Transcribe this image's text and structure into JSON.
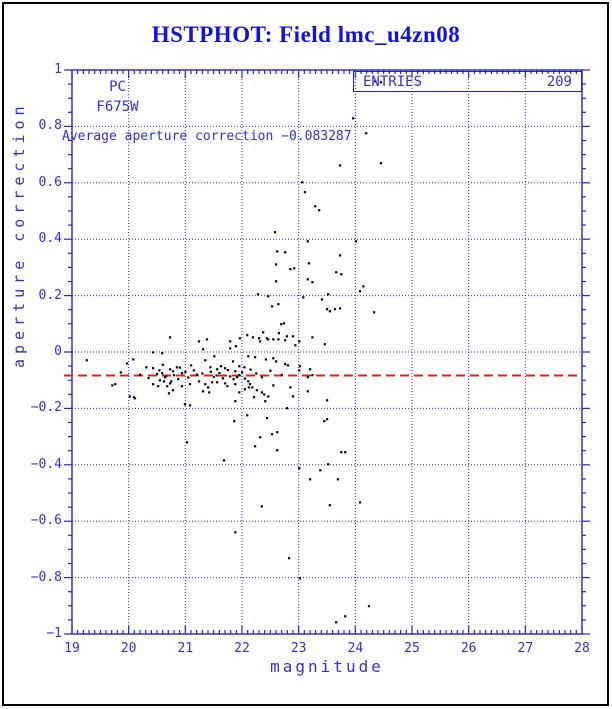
{
  "header": {
    "title": "HSTPHOT: Field lmc_u4zn08"
  },
  "colors": {
    "title_blue": "#1212d8",
    "axis_blue": "#2424c6",
    "text_blue": "#3232cc",
    "grid_blue": "#2a2ac4",
    "reference_red": "#e81c1c",
    "point_black": "#000000",
    "frame_black": "#000000",
    "background": "#ffffff"
  },
  "chart_data": {
    "type": "scatter",
    "title": "HSTPHOT: Field lmc_u4zn08",
    "xlabel": "magnitude",
    "ylabel": "aperture correction",
    "xlim": [
      19,
      28
    ],
    "ylim": [
      -1,
      1
    ],
    "grid": "dotted blue at every major tick",
    "x_tick_values": [
      19,
      20,
      21,
      22,
      23,
      24,
      25,
      26,
      27,
      28
    ],
    "x_tick_labels": [
      "19",
      "20",
      "21",
      "22",
      "23",
      "24",
      "25",
      "26",
      "27",
      "28"
    ],
    "x_minor_step": 0.1,
    "y_tick_values": [
      1,
      0.8,
      0.6,
      0.4,
      0.2,
      0,
      -0.2,
      -0.4,
      -0.6,
      -0.8,
      -1
    ],
    "y_tick_labels": [
      "1",
      "0.8",
      "0.6",
      "0.4",
      "0.2",
      "0",
      "−0.2",
      "−0.4",
      "−0.6",
      "−0.8",
      "−1"
    ],
    "y_minor_step": 0.05,
    "annotations": {
      "detector": "PC",
      "filter": "F675W",
      "average_text": "Average aperture correction −0.083287",
      "average_value": -0.083287
    },
    "stats_box": {
      "label": "ENTRIES",
      "value": "209"
    },
    "reference_line": {
      "y": -0.083287,
      "style": "dashed",
      "color": "#e81c1c"
    },
    "points": [
      [
        23.06,
        0.602
      ],
      [
        23.11,
        0.567
      ],
      [
        23.29,
        0.517
      ],
      [
        23.36,
        0.503
      ],
      [
        22.58,
        0.425
      ],
      [
        23.16,
        0.393
      ],
      [
        24.35,
        0.96
      ],
      [
        24.45,
        0.957
      ],
      [
        23.96,
        0.829
      ],
      [
        24.19,
        0.776
      ],
      [
        23.73,
        0.662
      ],
      [
        24.45,
        0.67
      ],
      [
        24.01,
        0.393
      ],
      [
        22.62,
        0.357
      ],
      [
        22.76,
        0.354
      ],
      [
        22.6,
        0.311
      ],
      [
        22.85,
        0.294
      ],
      [
        22.92,
        0.297
      ],
      [
        23.18,
        0.315
      ],
      [
        22.6,
        0.251
      ],
      [
        23.16,
        0.258
      ],
      [
        23.24,
        0.248
      ],
      [
        22.28,
        0.205
      ],
      [
        22.46,
        0.198
      ],
      [
        23.08,
        0.194
      ],
      [
        23.41,
        0.187
      ],
      [
        22.53,
        0.162
      ],
      [
        22.64,
        0.17
      ],
      [
        23.5,
        0.152
      ],
      [
        22.69,
        0.099
      ],
      [
        22.74,
        0.102
      ],
      [
        23.73,
        0.343
      ],
      [
        23.66,
        0.283
      ],
      [
        23.75,
        0.276
      ],
      [
        24.14,
        0.233
      ],
      [
        24.08,
        0.216
      ],
      [
        23.52,
        0.205
      ],
      [
        23.64,
        0.152
      ],
      [
        23.73,
        0.155
      ],
      [
        23.55,
        0.145
      ],
      [
        24.33,
        0.141
      ],
      [
        19.26,
        -0.029
      ],
      [
        19.86,
        -0.072
      ],
      [
        19.71,
        -0.118
      ],
      [
        19.76,
        -0.114
      ],
      [
        20.73,
        0.052
      ],
      [
        20.43,
        -0.001
      ],
      [
        20.59,
        -0.004
      ],
      [
        20.08,
        -0.026
      ],
      [
        19.97,
        -0.04
      ],
      [
        20.31,
        -0.054
      ],
      [
        20.43,
        -0.057
      ],
      [
        20.54,
        -0.065
      ],
      [
        20.59,
        -0.075
      ],
      [
        20.64,
        -0.089
      ],
      [
        20.73,
        -0.061
      ],
      [
        20.78,
        -0.068
      ],
      [
        20.85,
        -0.054
      ],
      [
        20.94,
        -0.075
      ],
      [
        20.75,
        -0.104
      ],
      [
        20.68,
        -0.121
      ],
      [
        20.78,
        -0.135
      ],
      [
        20.71,
        -0.146
      ],
      [
        20.09,
        -0.16
      ],
      [
        20.02,
        -0.157
      ],
      [
        21.1,
        -0.047
      ],
      [
        21.24,
        0.038
      ],
      [
        21.38,
        0.045
      ],
      [
        21.31,
        0.01
      ],
      [
        21.51,
        -0.015
      ],
      [
        21.35,
        -0.029
      ],
      [
        21.44,
        -0.054
      ],
      [
        21.56,
        -0.061
      ],
      [
        21.63,
        -0.05
      ],
      [
        21.7,
        -0.057
      ],
      [
        21.79,
        0.038
      ],
      [
        21.79,
        0.013
      ],
      [
        21.89,
        0.021
      ],
      [
        21.96,
        0.049
      ],
      [
        21.95,
        -0.05
      ],
      [
        21.88,
        -0.068
      ],
      [
        22.04,
        -0.054
      ],
      [
        21.79,
        -0.086
      ],
      [
        21.91,
        -0.089
      ],
      [
        21.66,
        -0.093
      ],
      [
        21.56,
        -0.107
      ],
      [
        21.4,
        -0.125
      ],
      [
        21.31,
        -0.139
      ],
      [
        22.11,
        -0.015
      ],
      [
        22.11,
        -0.104
      ],
      [
        22.19,
        0.052
      ],
      [
        22.3,
        0.049
      ],
      [
        22.32,
        0.038
      ],
      [
        22.46,
        0.045
      ],
      [
        22.55,
        0.045
      ],
      [
        22.64,
        0.045
      ],
      [
        22.76,
        0.042
      ],
      [
        22.94,
        0.024
      ],
      [
        22.23,
        -0.018
      ],
      [
        22.42,
        -0.026
      ],
      [
        22.55,
        -0.022
      ],
      [
        22.6,
        -0.033
      ],
      [
        22.76,
        -0.043
      ],
      [
        22.81,
        -0.047
      ],
      [
        23.02,
        -0.05
      ],
      [
        23.01,
        -0.065
      ],
      [
        23.2,
        -0.061
      ],
      [
        23.24,
        -0.082
      ],
      [
        22.35,
        -0.089
      ],
      [
        23.16,
        -0.089
      ],
      [
        22.14,
        -0.114
      ],
      [
        22.18,
        -0.125
      ],
      [
        22.26,
        -0.135
      ],
      [
        22.39,
        -0.15
      ],
      [
        22.46,
        -0.157
      ],
      [
        22.85,
        -0.125
      ],
      [
        22.9,
        -0.157
      ],
      [
        23.16,
        -0.139
      ],
      [
        23.5,
        -0.171
      ],
      [
        20.62,
        -0.104
      ],
      [
        20.73,
        -0.111
      ],
      [
        20.94,
        -0.121
      ],
      [
        20.11,
        -0.164
      ],
      [
        21.35,
        -0.114
      ],
      [
        21.42,
        -0.143
      ],
      [
        21.47,
        -0.107
      ],
      [
        21.7,
        -0.111
      ],
      [
        21.88,
        -0.114
      ],
      [
        21.95,
        -0.143
      ],
      [
        22.05,
        -0.132
      ],
      [
        22.12,
        -0.125
      ],
      [
        22.21,
        -0.16
      ],
      [
        22.35,
        -0.143
      ],
      [
        22.41,
        -0.174
      ],
      [
        20.99,
        -0.185
      ],
      [
        21.08,
        -0.189
      ],
      [
        21.88,
        -0.174
      ],
      [
        22.79,
        -0.199
      ],
      [
        22.09,
        -0.224
      ],
      [
        21.86,
        -0.245
      ],
      [
        22.44,
        -0.234
      ],
      [
        23.45,
        -0.245
      ],
      [
        23.5,
        -0.238
      ],
      [
        22.32,
        -0.302
      ],
      [
        22.53,
        -0.291
      ],
      [
        22.62,
        -0.284
      ],
      [
        22.23,
        -0.334
      ],
      [
        22.62,
        -0.348
      ],
      [
        21.03,
        -0.32
      ],
      [
        21.68,
        -0.384
      ],
      [
        23.01,
        -0.412
      ],
      [
        23.38,
        -0.419
      ],
      [
        23.2,
        -0.451
      ],
      [
        22.35,
        -0.547
      ],
      [
        23.75,
        -0.355
      ],
      [
        23.82,
        -0.355
      ],
      [
        23.52,
        -0.398
      ],
      [
        23.69,
        -0.451
      ],
      [
        23.55,
        -0.543
      ],
      [
        24.08,
        -0.533
      ],
      [
        21.88,
        -0.639
      ],
      [
        22.83,
        -0.731
      ],
      [
        23.02,
        -0.802
      ],
      [
        24.24,
        -0.901
      ],
      [
        23.82,
        -0.937
      ],
      [
        23.66,
        -0.958
      ],
      [
        22.09,
        0.06
      ],
      [
        22.37,
        0.07
      ],
      [
        22.44,
        0.049
      ],
      [
        22.65,
        0.067
      ],
      [
        22.79,
        0.056
      ],
      [
        22.9,
        0.056
      ],
      [
        23.01,
        0.038
      ],
      [
        23.24,
        0.052
      ],
      [
        23.46,
        0.028
      ],
      [
        21.84,
        -0.033
      ],
      [
        20.43,
        -0.114
      ],
      [
        20.52,
        -0.121
      ],
      [
        20.87,
        -0.096
      ],
      [
        21.08,
        -0.114
      ],
      [
        21.24,
        -0.104
      ],
      [
        21.74,
        -0.121
      ],
      [
        22.55,
        -0.118
      ],
      [
        20.2,
        -0.08
      ],
      [
        20.35,
        -0.092
      ],
      [
        20.5,
        -0.078
      ],
      [
        20.55,
        -0.1
      ],
      [
        20.6,
        -0.045
      ],
      [
        20.66,
        -0.085
      ],
      [
        20.8,
        -0.082
      ],
      [
        20.9,
        -0.055
      ],
      [
        21.0,
        -0.07
      ],
      [
        21.05,
        -0.09
      ],
      [
        21.15,
        -0.065
      ],
      [
        21.2,
        -0.08
      ],
      [
        21.3,
        -0.076
      ],
      [
        21.45,
        -0.07
      ],
      [
        21.5,
        -0.088
      ],
      [
        21.6,
        -0.074
      ],
      [
        21.75,
        -0.064
      ],
      [
        21.85,
        -0.096
      ],
      [
        21.95,
        -0.082
      ],
      [
        22.0,
        -0.072
      ],
      [
        22.05,
        -0.094
      ],
      [
        22.15,
        -0.062
      ],
      [
        22.25,
        -0.076
      ],
      [
        22.5,
        -0.066
      ],
      [
        22.7,
        -0.081
      ],
      [
        21.55,
        -0.083
      ]
    ]
  }
}
